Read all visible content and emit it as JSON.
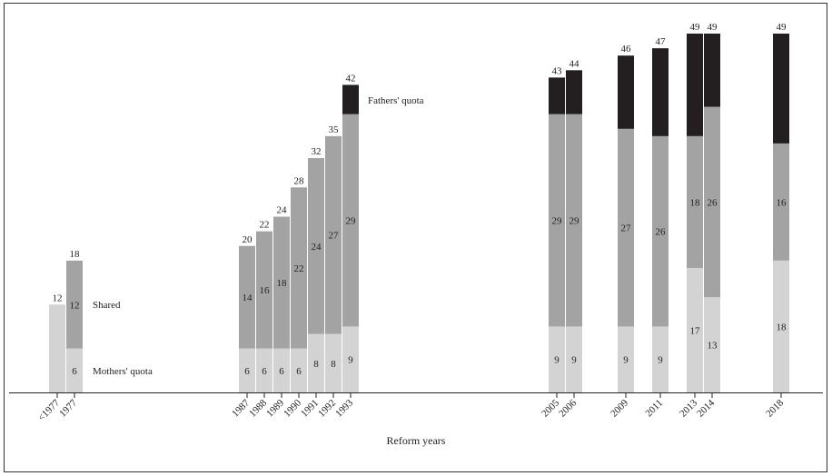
{
  "chart_data": {
    "type": "bar",
    "stacked": true,
    "xlabel": "Reform years",
    "ylabel": "",
    "ylim": [
      0,
      49
    ],
    "grid": false,
    "legend": "inline labels",
    "categories": [
      "<1977",
      "1977",
      "1987",
      "1988",
      "1989",
      "1990",
      "1991",
      "1992",
      "1993",
      "2005",
      "2006",
      "2009",
      "2011",
      "2013",
      "2014",
      "2018"
    ],
    "series": [
      {
        "name": "Mothers' quota",
        "color": "#d3d3d3",
        "values": [
          12,
          6,
          6,
          6,
          6,
          6,
          8,
          8,
          9,
          9,
          9,
          9,
          9,
          17,
          13,
          18
        ],
        "labels": [
          "",
          "6",
          "6",
          "6",
          "6",
          "6",
          "8",
          "8",
          "9",
          "9",
          "9",
          "9",
          "9",
          "17",
          "13",
          "18"
        ]
      },
      {
        "name": "Shared",
        "color": "#a3a3a3",
        "values": [
          0,
          12,
          14,
          16,
          18,
          22,
          24,
          27,
          29,
          29,
          29,
          27,
          26,
          18,
          26,
          16
        ],
        "labels": [
          "",
          "12",
          "14",
          "16",
          "18",
          "22",
          "24",
          "27",
          "29",
          "29",
          "29",
          "27",
          "26",
          "18",
          "26",
          "16"
        ]
      },
      {
        "name": "Fathers' quota",
        "color": "#231f20",
        "values": [
          0,
          0,
          0,
          0,
          0,
          0,
          0,
          0,
          4,
          5,
          6,
          10,
          12,
          14,
          10,
          15
        ]
      }
    ],
    "totals": [
      "12",
      "18",
      "20",
      "22",
      "24",
      "28",
      "32",
      "35",
      "42",
      "43",
      "44",
      "46",
      "47",
      "49",
      "49",
      "49"
    ]
  }
}
